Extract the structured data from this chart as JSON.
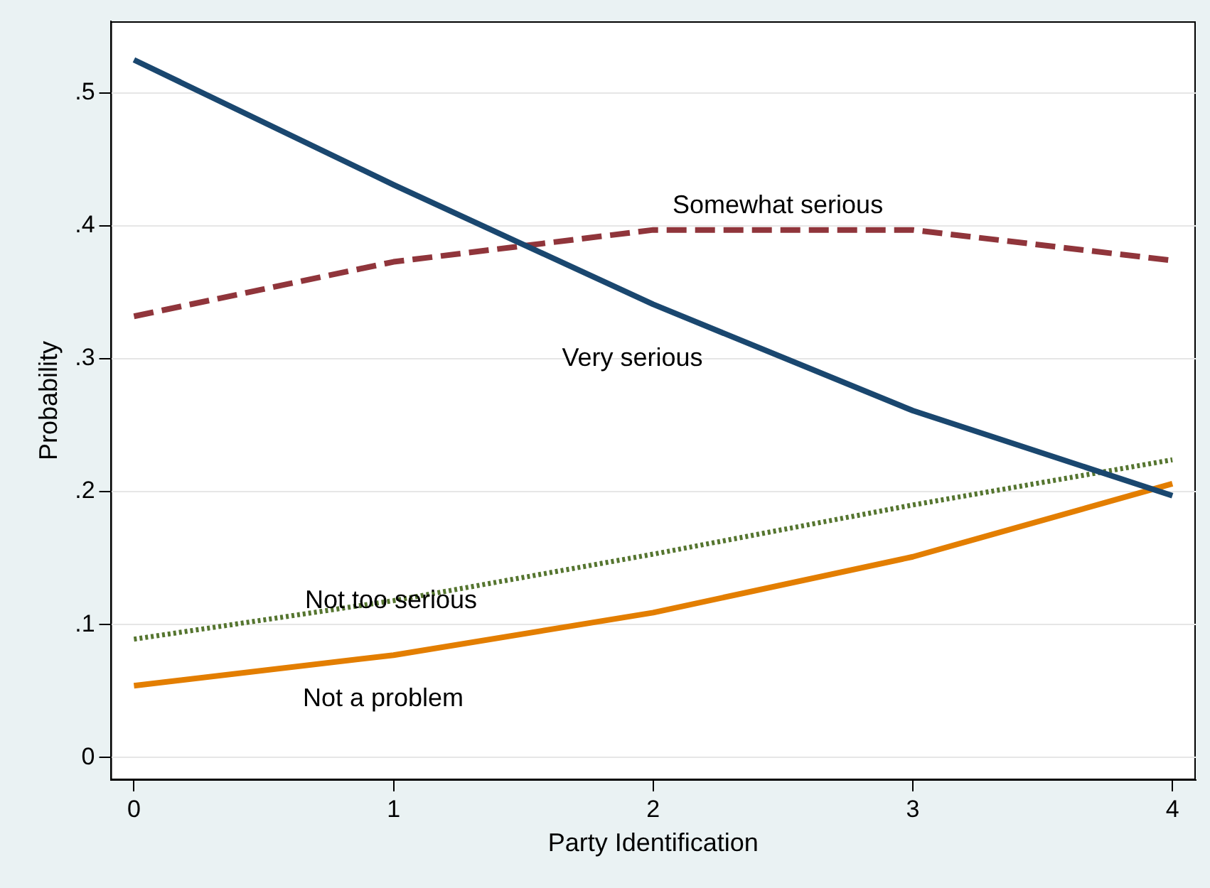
{
  "chart_data": {
    "type": "line",
    "xlabel": "Party Identification",
    "ylabel": "Probability",
    "x": [
      0,
      1,
      2,
      3,
      4
    ],
    "series": [
      {
        "name": "Very serious",
        "color": "#1a476f",
        "line_style": "solid",
        "values": [
          0.525,
          0.431,
          0.341,
          0.261,
          0.197
        ]
      },
      {
        "name": "Somewhat serious",
        "color": "#90353b",
        "line_style": "dashed",
        "values": [
          0.332,
          0.373,
          0.397,
          0.397,
          0.374
        ]
      },
      {
        "name": "Not too serious",
        "color": "#55752f",
        "line_style": "dotted",
        "values": [
          0.089,
          0.118,
          0.153,
          0.19,
          0.224
        ]
      },
      {
        "name": "Not a problem",
        "color": "#e37e00",
        "line_style": "solid",
        "values": [
          0.054,
          0.077,
          0.109,
          0.151,
          0.206
        ]
      }
    ],
    "xlim": [
      -0.09,
      4.09
    ],
    "xticks": [
      0,
      1,
      2,
      3,
      4
    ],
    "ylim": [
      -0.017,
      0.554
    ],
    "yticks": [
      {
        "value": 0,
        "label": "0"
      },
      {
        "value": 0.1,
        "label": ".1"
      },
      {
        "value": 0.2,
        "label": ".2"
      },
      {
        "value": 0.3,
        "label": ".3"
      },
      {
        "value": 0.4,
        "label": ".4"
      },
      {
        "value": 0.5,
        "label": ".5"
      }
    ],
    "grid": "y",
    "legend": false,
    "marker": "none"
  }
}
